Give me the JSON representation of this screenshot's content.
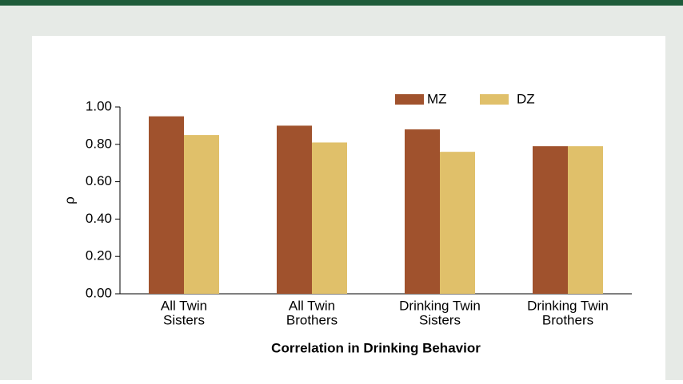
{
  "chart_data": {
    "type": "bar",
    "xlabel": "Correlation in Drinking Behavior",
    "ylabel": "ρ",
    "categories": [
      [
        "All Twin",
        "Sisters"
      ],
      [
        "All Twin",
        "Brothers"
      ],
      [
        "Drinking Twin",
        "Sisters"
      ],
      [
        "Drinking Twin",
        "Brothers"
      ]
    ],
    "series": [
      {
        "name": "MZ",
        "color": "#a0522d",
        "values": [
          0.95,
          0.9,
          0.88,
          0.79
        ]
      },
      {
        "name": "DZ",
        "color": "#e0c06a",
        "values": [
          0.85,
          0.81,
          0.76,
          0.79
        ]
      }
    ],
    "ylim": [
      0,
      1
    ],
    "yticks": [
      {
        "value": 0,
        "label": "0.00"
      },
      {
        "value": 0.2,
        "label": "0.20"
      },
      {
        "value": 0.4,
        "label": "0.40"
      },
      {
        "value": 0.6,
        "label": "0.60"
      },
      {
        "value": 0.8,
        "label": "0.80"
      },
      {
        "value": 1,
        "label": "1.00"
      }
    ],
    "legend": "top-right"
  }
}
